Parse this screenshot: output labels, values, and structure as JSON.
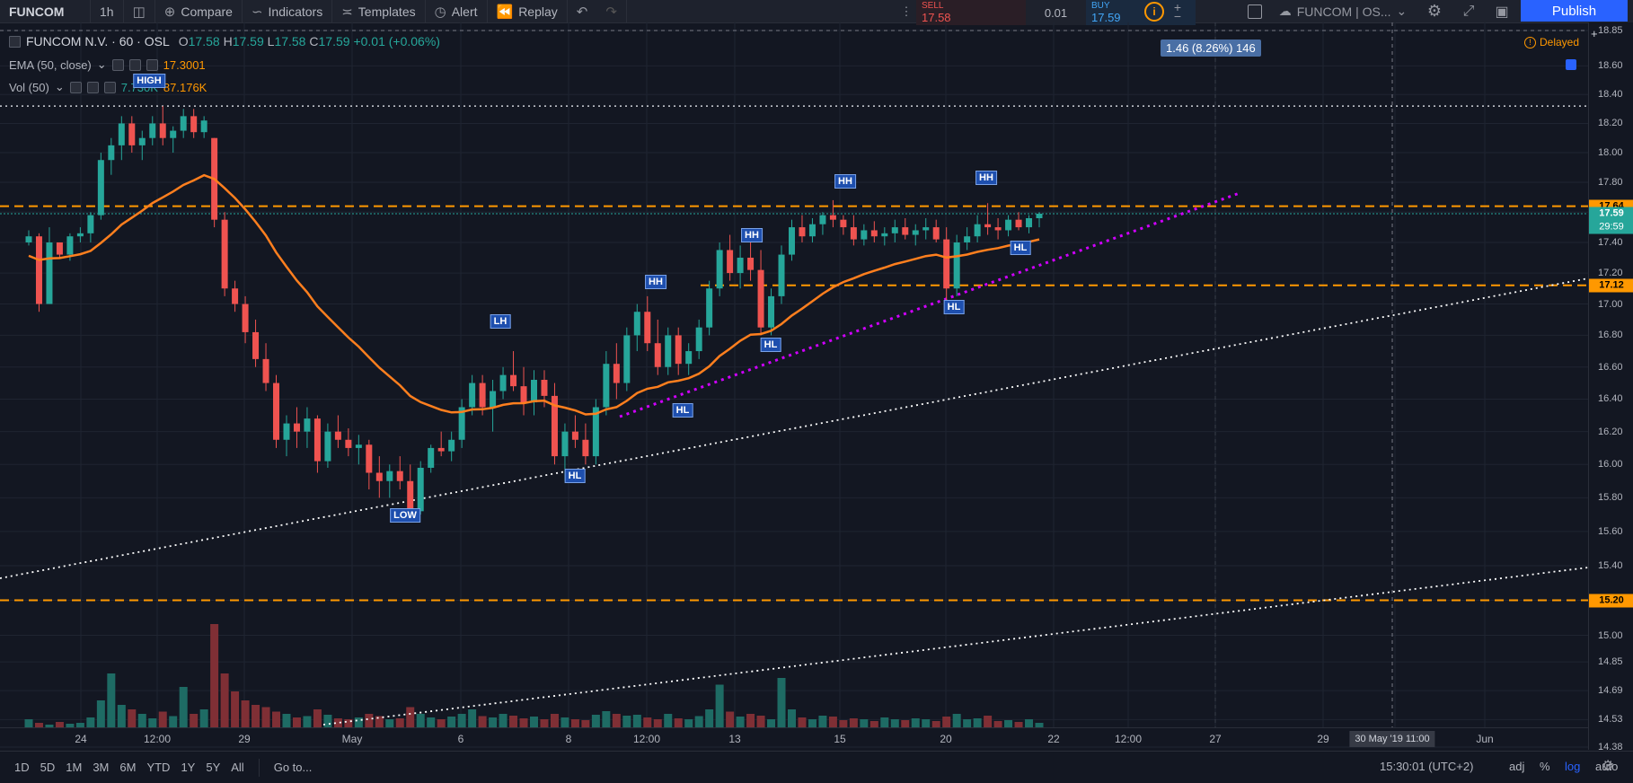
{
  "toolbar": {
    "symbol": "FUNCOM",
    "interval": "1h",
    "compare": "Compare",
    "indicators": "Indicators",
    "templates": "Templates",
    "alert": "Alert",
    "replay": "Replay",
    "sell_label": "SELL",
    "sell_price": "17.58",
    "spread": "0.01",
    "buy_label": "BUY",
    "buy_price": "17.59",
    "layout_name": "FUNCOM | OS...",
    "publish": "Publish"
  },
  "legend": {
    "title": "FUNCOM N.V. · 60 · OSL",
    "open_label": "O",
    "open": "17.58",
    "high_label": "H",
    "high": "17.59",
    "low_label": "L",
    "low": "17.58",
    "close_label": "C",
    "close": "17.59",
    "change": "+0.01 (+0.06%)",
    "ema_label": "EMA (50, close)",
    "ema_value": "17.3001",
    "vol_label": "Vol (50)",
    "vol_value1": "7.730K",
    "vol_value2": "87.176K",
    "delayed": "Delayed"
  },
  "measure_label": "1.46 (8.26%) 146",
  "colors": {
    "up": "#26a69a",
    "down": "#ef5350",
    "ema": "#ff7f1e",
    "level": "#ff9800",
    "trend_magenta": "#d000ff",
    "price_line": "#26a69a",
    "background": "#131722"
  },
  "price_scale": {
    "ticks": [
      "18.85",
      "18.60",
      "18.40",
      "18.20",
      "18.00",
      "17.80",
      "17.60",
      "17.40",
      "17.20",
      "17.00",
      "16.80",
      "16.60",
      "16.40",
      "16.20",
      "16.00",
      "15.80",
      "15.60",
      "15.40",
      "15.20",
      "15.00",
      "14.85",
      "14.69",
      "14.53",
      "14.38"
    ],
    "level_1764": "17.64",
    "last_price": "17.59",
    "countdown": "29:59",
    "level_1712": "17.12",
    "level_1520": "15.20"
  },
  "time_axis": {
    "ticks": [
      "24",
      "12:00",
      "29",
      "May",
      "6",
      "8",
      "12:00",
      "13",
      "15",
      "20",
      "22",
      "12:00",
      "27",
      "29",
      "Jun"
    ],
    "cursor": "30 May '19   11:00"
  },
  "bottom": {
    "ranges": [
      "1D",
      "5D",
      "1M",
      "3M",
      "6M",
      "YTD",
      "1Y",
      "5Y",
      "All"
    ],
    "goto": "Go to...",
    "clock": "15:30:01 (UTC+2)",
    "adj": "adj",
    "pct": "%",
    "log": "log",
    "auto": "auto"
  },
  "annotations": [
    {
      "text": "HIGH"
    },
    {
      "text": "LH"
    },
    {
      "text": "LOW"
    },
    {
      "text": "HL"
    },
    {
      "text": "HH"
    },
    {
      "text": "HL"
    },
    {
      "text": "HH"
    },
    {
      "text": "HL"
    },
    {
      "text": "HH"
    },
    {
      "text": "HL"
    },
    {
      "text": "HH"
    },
    {
      "text": "HL"
    }
  ],
  "chart_data": {
    "type": "candlestick",
    "symbol": "FUNCOM N.V.",
    "interval": "60",
    "exchange": "OSL",
    "y_scale": "log",
    "ylim": [
      14.38,
      18.85
    ],
    "levels": [
      17.64,
      17.12,
      15.2
    ],
    "ema_period": 50,
    "last_price": 17.59,
    "candles": [
      [
        17.4,
        17.48,
        17.38,
        17.44
      ],
      [
        17.44,
        17.46,
        16.95,
        17.0
      ],
      [
        17.0,
        17.5,
        17.0,
        17.4
      ],
      [
        17.4,
        17.4,
        17.3,
        17.32
      ],
      [
        17.32,
        17.46,
        17.28,
        17.44
      ],
      [
        17.44,
        17.5,
        17.4,
        17.46
      ],
      [
        17.46,
        17.6,
        17.4,
        17.58
      ],
      [
        17.58,
        18.0,
        17.55,
        17.95
      ],
      [
        17.95,
        18.1,
        17.85,
        18.05
      ],
      [
        18.05,
        18.25,
        17.95,
        18.2
      ],
      [
        18.2,
        18.25,
        18.0,
        18.05
      ],
      [
        18.05,
        18.15,
        17.95,
        18.1
      ],
      [
        18.1,
        18.25,
        18.05,
        18.2
      ],
      [
        18.2,
        18.32,
        18.05,
        18.1
      ],
      [
        18.1,
        18.18,
        18.0,
        18.15
      ],
      [
        18.15,
        18.3,
        18.1,
        18.25
      ],
      [
        18.25,
        18.3,
        18.1,
        18.14
      ],
      [
        18.14,
        18.25,
        18.1,
        18.22
      ],
      [
        18.1,
        18.1,
        17.5,
        17.55
      ],
      [
        17.55,
        17.6,
        17.05,
        17.1
      ],
      [
        17.1,
        17.15,
        16.95,
        17.0
      ],
      [
        17.0,
        17.05,
        16.75,
        16.82
      ],
      [
        16.82,
        16.9,
        16.6,
        16.65
      ],
      [
        16.65,
        16.75,
        16.45,
        16.5
      ],
      [
        16.5,
        16.55,
        16.1,
        16.15
      ],
      [
        16.15,
        16.3,
        16.05,
        16.25
      ],
      [
        16.25,
        16.35,
        16.1,
        16.2
      ],
      [
        16.2,
        16.35,
        16.1,
        16.28
      ],
      [
        16.28,
        16.3,
        15.95,
        16.02
      ],
      [
        16.02,
        16.25,
        15.98,
        16.2
      ],
      [
        16.2,
        16.3,
        16.1,
        16.15
      ],
      [
        16.15,
        16.22,
        16.05,
        16.1
      ],
      [
        16.1,
        16.18,
        16.0,
        16.12
      ],
      [
        16.12,
        16.15,
        15.85,
        15.95
      ],
      [
        15.95,
        16.05,
        15.8,
        15.9
      ],
      [
        15.9,
        16.0,
        15.8,
        15.96
      ],
      [
        15.96,
        16.05,
        15.85,
        15.9
      ],
      [
        15.9,
        16.0,
        15.7,
        15.72
      ],
      [
        15.72,
        16.02,
        15.7,
        15.98
      ],
      [
        15.98,
        16.12,
        15.95,
        16.1
      ],
      [
        16.1,
        16.2,
        16.05,
        16.08
      ],
      [
        16.08,
        16.2,
        16.02,
        16.15
      ],
      [
        16.15,
        16.4,
        16.1,
        16.35
      ],
      [
        16.35,
        16.55,
        16.3,
        16.5
      ],
      [
        16.5,
        16.55,
        16.3,
        16.35
      ],
      [
        16.35,
        16.52,
        16.2,
        16.45
      ],
      [
        16.45,
        16.6,
        16.4,
        16.55
      ],
      [
        16.55,
        16.7,
        16.45,
        16.48
      ],
      [
        16.48,
        16.6,
        16.3,
        16.38
      ],
      [
        16.38,
        16.58,
        16.3,
        16.52
      ],
      [
        16.52,
        16.58,
        16.35,
        16.42
      ],
      [
        16.42,
        16.5,
        16.0,
        16.05
      ],
      [
        16.05,
        16.25,
        15.9,
        16.2
      ],
      [
        16.2,
        16.3,
        16.1,
        16.15
      ],
      [
        16.15,
        16.25,
        16.0,
        16.05
      ],
      [
        16.05,
        16.4,
        16.0,
        16.35
      ],
      [
        16.35,
        16.7,
        16.3,
        16.62
      ],
      [
        16.62,
        16.75,
        16.4,
        16.5
      ],
      [
        16.5,
        16.85,
        16.45,
        16.8
      ],
      [
        16.8,
        17.0,
        16.7,
        16.95
      ],
      [
        16.95,
        17.05,
        16.7,
        16.75
      ],
      [
        16.75,
        16.9,
        16.55,
        16.6
      ],
      [
        16.6,
        16.85,
        16.55,
        16.8
      ],
      [
        16.8,
        16.85,
        16.55,
        16.62
      ],
      [
        16.62,
        16.75,
        16.55,
        16.7
      ],
      [
        16.7,
        16.9,
        16.65,
        16.85
      ],
      [
        16.85,
        17.15,
        16.8,
        17.1
      ],
      [
        17.1,
        17.4,
        17.05,
        17.35
      ],
      [
        17.35,
        17.45,
        17.15,
        17.2
      ],
      [
        17.2,
        17.38,
        17.1,
        17.3
      ],
      [
        17.3,
        17.4,
        17.15,
        17.22
      ],
      [
        17.22,
        17.35,
        16.8,
        16.85
      ],
      [
        16.85,
        17.1,
        16.8,
        17.05
      ],
      [
        17.05,
        17.38,
        17.0,
        17.32
      ],
      [
        17.32,
        17.55,
        17.28,
        17.5
      ],
      [
        17.5,
        17.58,
        17.4,
        17.44
      ],
      [
        17.44,
        17.56,
        17.4,
        17.52
      ],
      [
        17.52,
        17.6,
        17.45,
        17.58
      ],
      [
        17.58,
        17.68,
        17.5,
        17.55
      ],
      [
        17.55,
        17.58,
        17.45,
        17.5
      ],
      [
        17.5,
        17.58,
        17.38,
        17.42
      ],
      [
        17.42,
        17.52,
        17.38,
        17.48
      ],
      [
        17.48,
        17.54,
        17.4,
        17.44
      ],
      [
        17.44,
        17.5,
        17.38,
        17.46
      ],
      [
        17.46,
        17.55,
        17.4,
        17.5
      ],
      [
        17.5,
        17.56,
        17.42,
        17.45
      ],
      [
        17.45,
        17.52,
        17.38,
        17.48
      ],
      [
        17.48,
        17.56,
        17.42,
        17.5
      ],
      [
        17.5,
        17.55,
        17.4,
        17.42
      ],
      [
        17.42,
        17.5,
        17.0,
        17.1
      ],
      [
        17.1,
        17.45,
        17.05,
        17.4
      ],
      [
        17.4,
        17.5,
        17.35,
        17.44
      ],
      [
        17.44,
        17.58,
        17.4,
        17.52
      ],
      [
        17.52,
        17.66,
        17.45,
        17.5
      ],
      [
        17.5,
        17.56,
        17.42,
        17.48
      ],
      [
        17.48,
        17.58,
        17.44,
        17.55
      ],
      [
        17.55,
        17.6,
        17.48,
        17.5
      ],
      [
        17.5,
        17.58,
        17.46,
        17.56
      ],
      [
        17.56,
        17.6,
        17.5,
        17.59
      ]
    ]
  }
}
